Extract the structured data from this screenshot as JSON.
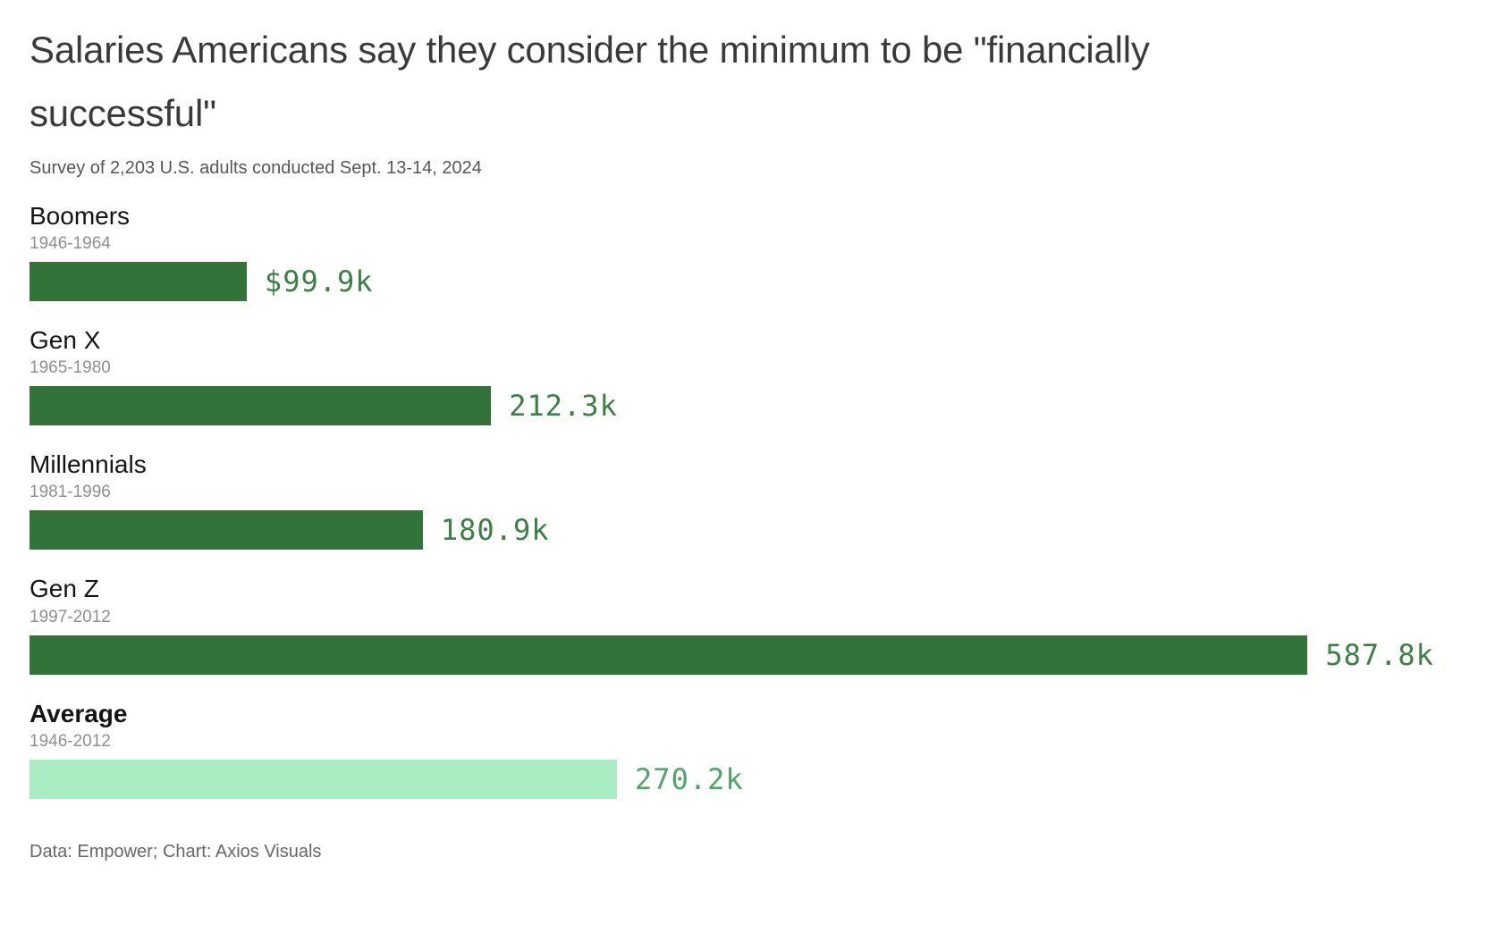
{
  "chart_data": {
    "type": "bar",
    "orientation": "horizontal",
    "title": "Salaries Americans say they consider the minimum to be \"financially successful\"",
    "subtitle": "Survey of 2,203 U.S. adults conducted Sept. 13-14, 2024",
    "footer": "Data: Empower; Chart: Axios Visuals",
    "categories": [
      "Boomers",
      "Gen X",
      "Millennials",
      "Gen Z",
      "Average"
    ],
    "values": [
      99.9,
      212.3,
      180.9,
      587.8,
      270.2
    ],
    "max_value": 587.8,
    "max_bar_pct": 89,
    "value_unit": "k",
    "bars": [
      {
        "label": "Boomers",
        "years": "1946-1964",
        "value": 99.9,
        "value_label": "$99.9k",
        "bar_color": "#337339",
        "value_color": "#3d7f44",
        "emphasis": false
      },
      {
        "label": "Gen X",
        "years": "1965-1980",
        "value": 212.3,
        "value_label": "212.3k",
        "bar_color": "#337339",
        "value_color": "#3d7f44",
        "emphasis": false
      },
      {
        "label": "Millennials",
        "years": "1981-1996",
        "value": 180.9,
        "value_label": "180.9k",
        "bar_color": "#337339",
        "value_color": "#3d7f44",
        "emphasis": false
      },
      {
        "label": "Gen Z",
        "years": "1997-2012",
        "value": 587.8,
        "value_label": "587.8k",
        "bar_color": "#337339",
        "value_color": "#3d7f44",
        "emphasis": false
      },
      {
        "label": "Average",
        "years": "1946-2012",
        "value": 270.2,
        "value_label": "270.2k",
        "bar_color": "#a9ecc1",
        "value_color": "#52a568",
        "emphasis": true
      }
    ]
  }
}
